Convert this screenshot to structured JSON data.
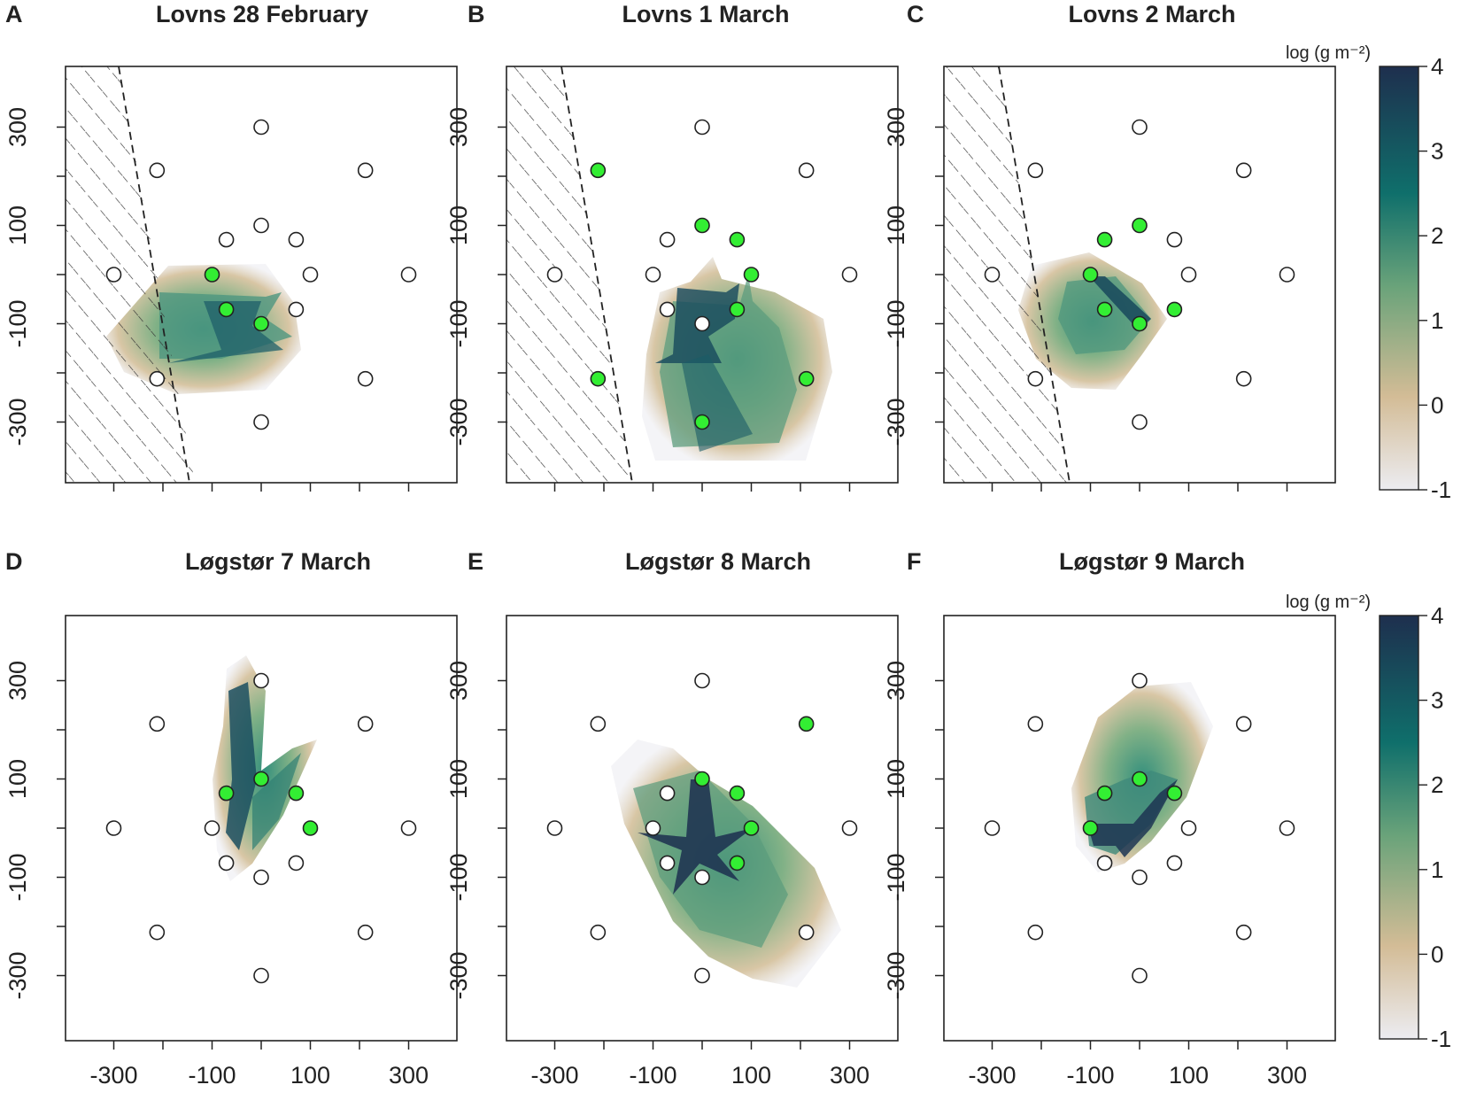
{
  "figure": {
    "colorbar_title": "log (g m⁻²)",
    "colorbar_ticks": [
      4,
      3,
      2,
      1,
      0,
      -1
    ],
    "colorbar_range": [
      -1,
      4
    ],
    "colorbar_colors": [
      "#ececf1",
      "#d3bc96",
      "#6aa37a",
      "#0f6f6b",
      "#1e2f4e"
    ]
  },
  "chart_data": [
    {
      "type": "heatmap",
      "letter": "A",
      "title": "Lovns 28 February",
      "xlim": [
        -400,
        400
      ],
      "ylim": [
        -420,
        420
      ],
      "xticks": [
        -300,
        -100,
        100,
        300
      ],
      "yticks": [
        300,
        100,
        -100,
        -300
      ],
      "dark_x_labels": false,
      "hatch_shore": [
        [
          -300,
          420
        ],
        [
          -140,
          -420
        ]
      ],
      "stations": [
        {
          "x": 0,
          "y": 300,
          "detected": false
        },
        {
          "x": -212,
          "y": 212,
          "detected": false
        },
        {
          "x": 212,
          "y": 212,
          "detected": false
        },
        {
          "x": 0,
          "y": 100,
          "detected": false
        },
        {
          "x": -71,
          "y": 71,
          "detected": false
        },
        {
          "x": 71,
          "y": 71,
          "detected": false
        },
        {
          "x": -300,
          "y": 0,
          "detected": false
        },
        {
          "x": -100,
          "y": 0,
          "detected": true
        },
        {
          "x": 100,
          "y": 0,
          "detected": false
        },
        {
          "x": 300,
          "y": 0,
          "detected": false
        },
        {
          "x": -71,
          "y": -71,
          "detected": true
        },
        {
          "x": 71,
          "y": -71,
          "detected": false
        },
        {
          "x": 0,
          "y": -100,
          "detected": true
        },
        {
          "x": -212,
          "y": -212,
          "detected": false
        },
        {
          "x": 212,
          "y": -212,
          "detected": false
        },
        {
          "x": 0,
          "y": -300,
          "detected": false
        }
      ]
    },
    {
      "type": "heatmap",
      "letter": "B",
      "title": "Lovns 1 March",
      "xlim": [
        -400,
        400
      ],
      "ylim": [
        -420,
        420
      ],
      "xticks": [
        -300,
        -100,
        100,
        300
      ],
      "yticks": [
        300,
        100,
        -100,
        -300
      ],
      "dark_x_labels": false,
      "hatch_shore": [
        [
          -300,
          420
        ],
        [
          -170,
          -420
        ]
      ],
      "stations": [
        {
          "x": 0,
          "y": 300,
          "detected": false
        },
        {
          "x": -212,
          "y": 212,
          "detected": true
        },
        {
          "x": 212,
          "y": 212,
          "detected": false
        },
        {
          "x": 0,
          "y": 100,
          "detected": true
        },
        {
          "x": -71,
          "y": 71,
          "detected": false
        },
        {
          "x": 71,
          "y": 71,
          "detected": true
        },
        {
          "x": -300,
          "y": 0,
          "detected": false
        },
        {
          "x": -100,
          "y": 0,
          "detected": false
        },
        {
          "x": 100,
          "y": 0,
          "detected": true
        },
        {
          "x": 300,
          "y": 0,
          "detected": false
        },
        {
          "x": -71,
          "y": -71,
          "detected": false
        },
        {
          "x": 71,
          "y": -71,
          "detected": true
        },
        {
          "x": 0,
          "y": -100,
          "detected": false
        },
        {
          "x": -212,
          "y": -212,
          "detected": true
        },
        {
          "x": 212,
          "y": -212,
          "detected": true
        },
        {
          "x": 0,
          "y": -300,
          "detected": true
        }
      ]
    },
    {
      "type": "heatmap",
      "letter": "C",
      "title": "Lovns 2 March",
      "xlim": [
        -400,
        400
      ],
      "ylim": [
        -420,
        420
      ],
      "xticks": [
        -300,
        -100,
        100,
        300
      ],
      "yticks": [
        300,
        100,
        -100,
        -300
      ],
      "dark_x_labels": false,
      "hatch_shore": [
        [
          -300,
          420
        ],
        [
          -140,
          -420
        ]
      ],
      "stations": [
        {
          "x": 0,
          "y": 300,
          "detected": false
        },
        {
          "x": -212,
          "y": 212,
          "detected": false
        },
        {
          "x": 212,
          "y": 212,
          "detected": false
        },
        {
          "x": 0,
          "y": 100,
          "detected": true
        },
        {
          "x": -71,
          "y": 71,
          "detected": true
        },
        {
          "x": 71,
          "y": 71,
          "detected": false
        },
        {
          "x": -300,
          "y": 0,
          "detected": false
        },
        {
          "x": -100,
          "y": 0,
          "detected": true
        },
        {
          "x": 100,
          "y": 0,
          "detected": false
        },
        {
          "x": 300,
          "y": 0,
          "detected": false
        },
        {
          "x": -71,
          "y": -71,
          "detected": true
        },
        {
          "x": 71,
          "y": -71,
          "detected": true
        },
        {
          "x": 0,
          "y": -100,
          "detected": true
        },
        {
          "x": -212,
          "y": -212,
          "detected": false
        },
        {
          "x": 212,
          "y": -212,
          "detected": false
        },
        {
          "x": 0,
          "y": -300,
          "detected": false
        }
      ]
    },
    {
      "type": "heatmap",
      "letter": "D",
      "title": "Løgstør 7 March",
      "xlim": [
        -400,
        400
      ],
      "ylim": [
        -420,
        420
      ],
      "xticks": [
        -300,
        -100,
        100,
        300
      ],
      "yticks": [
        300,
        100,
        -100,
        -300
      ],
      "dark_x_labels": true,
      "hatch_shore": null,
      "stations": [
        {
          "x": 0,
          "y": 300,
          "detected": false
        },
        {
          "x": -212,
          "y": 212,
          "detected": false
        },
        {
          "x": 212,
          "y": 212,
          "detected": false
        },
        {
          "x": 0,
          "y": 100,
          "detected": true
        },
        {
          "x": -71,
          "y": 71,
          "detected": true
        },
        {
          "x": 71,
          "y": 71,
          "detected": true
        },
        {
          "x": -300,
          "y": 0,
          "detected": false
        },
        {
          "x": -100,
          "y": 0,
          "detected": false
        },
        {
          "x": 100,
          "y": 0,
          "detected": true
        },
        {
          "x": 300,
          "y": 0,
          "detected": false
        },
        {
          "x": -71,
          "y": -71,
          "detected": false
        },
        {
          "x": 71,
          "y": -71,
          "detected": false
        },
        {
          "x": 0,
          "y": -100,
          "detected": false
        },
        {
          "x": -212,
          "y": -212,
          "detected": false
        },
        {
          "x": 212,
          "y": -212,
          "detected": false
        },
        {
          "x": 0,
          "y": -300,
          "detected": false
        }
      ]
    },
    {
      "type": "heatmap",
      "letter": "E",
      "title": "Løgstør 8 March",
      "xlim": [
        -400,
        400
      ],
      "ylim": [
        -420,
        420
      ],
      "xticks": [
        -300,
        -100,
        100,
        300
      ],
      "yticks": [
        300,
        100,
        -100,
        -300
      ],
      "dark_x_labels": true,
      "hatch_shore": null,
      "stations": [
        {
          "x": 0,
          "y": 300,
          "detected": false
        },
        {
          "x": -212,
          "y": 212,
          "detected": false
        },
        {
          "x": 212,
          "y": 212,
          "detected": true
        },
        {
          "x": 0,
          "y": 100,
          "detected": true
        },
        {
          "x": -71,
          "y": 71,
          "detected": false
        },
        {
          "x": 71,
          "y": 71,
          "detected": true
        },
        {
          "x": -300,
          "y": 0,
          "detected": false
        },
        {
          "x": -100,
          "y": 0,
          "detected": false
        },
        {
          "x": 100,
          "y": 0,
          "detected": true
        },
        {
          "x": 300,
          "y": 0,
          "detected": false
        },
        {
          "x": -71,
          "y": -71,
          "detected": false
        },
        {
          "x": 71,
          "y": -71,
          "detected": true
        },
        {
          "x": 0,
          "y": -100,
          "detected": false
        },
        {
          "x": -212,
          "y": -212,
          "detected": false
        },
        {
          "x": 212,
          "y": -212,
          "detected": false
        },
        {
          "x": 0,
          "y": -300,
          "detected": false
        }
      ]
    },
    {
      "type": "heatmap",
      "letter": "F",
      "title": "Løgstør 9 March",
      "xlim": [
        -400,
        400
      ],
      "ylim": [
        -420,
        420
      ],
      "xticks": [
        -300,
        -100,
        100,
        300
      ],
      "yticks": [
        300,
        100,
        -100,
        -300
      ],
      "dark_x_labels": true,
      "hatch_shore": null,
      "stations": [
        {
          "x": 0,
          "y": 300,
          "detected": false
        },
        {
          "x": -212,
          "y": 212,
          "detected": false
        },
        {
          "x": 212,
          "y": 212,
          "detected": false
        },
        {
          "x": 0,
          "y": 100,
          "detected": true
        },
        {
          "x": -71,
          "y": 71,
          "detected": true
        },
        {
          "x": 71,
          "y": 71,
          "detected": true
        },
        {
          "x": -300,
          "y": 0,
          "detected": false
        },
        {
          "x": -100,
          "y": 0,
          "detected": true
        },
        {
          "x": 100,
          "y": 0,
          "detected": false
        },
        {
          "x": 300,
          "y": 0,
          "detected": false
        },
        {
          "x": -71,
          "y": -71,
          "detected": false
        },
        {
          "x": 71,
          "y": -71,
          "detected": false
        },
        {
          "x": 0,
          "y": -100,
          "detected": false
        },
        {
          "x": -212,
          "y": -212,
          "detected": false
        },
        {
          "x": 212,
          "y": -212,
          "detected": false
        },
        {
          "x": 0,
          "y": -300,
          "detected": false
        }
      ]
    }
  ]
}
